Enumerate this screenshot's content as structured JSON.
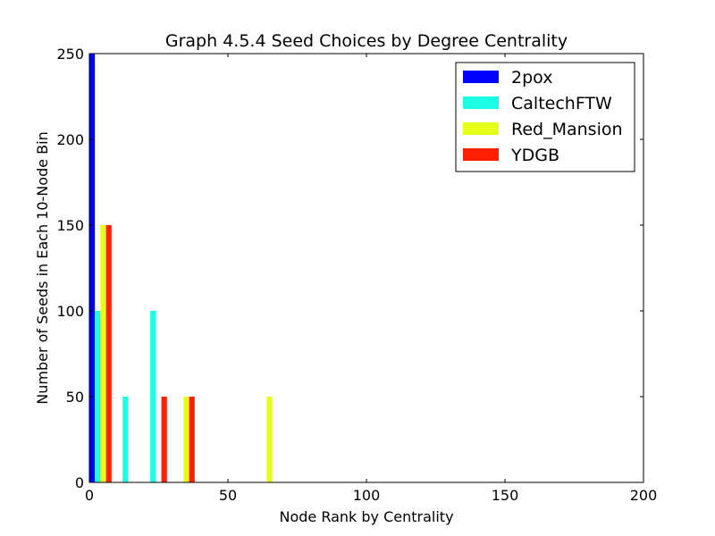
{
  "chart_data": {
    "type": "bar",
    "title": "Graph 4.5.4 Seed Choices by Degree Centrality",
    "xlabel": "Node Rank by Centrality",
    "ylabel": "Number of Seeds in Each 10-Node Bin",
    "xlim": [
      0,
      200
    ],
    "ylim": [
      0,
      250
    ],
    "x_ticks": [
      "0",
      "50",
      "100",
      "150",
      "200"
    ],
    "y_ticks": [
      "0",
      "50",
      "100",
      "150",
      "200",
      "250"
    ],
    "grid": false,
    "legend_position": "top-right",
    "bin_width": 10,
    "bin_starts": [
      0,
      10,
      20,
      30,
      60
    ],
    "series": [
      {
        "name": "2pox",
        "color": "#0000ff",
        "values": [
          250,
          0,
          0,
          0,
          0
        ]
      },
      {
        "name": "CaltechFTW",
        "color": "#1affe6",
        "values": [
          100,
          50,
          100,
          0,
          0
        ]
      },
      {
        "name": "Red_Mansion",
        "color": "#e6ff1a",
        "values": [
          150,
          0,
          0,
          50,
          50
        ]
      },
      {
        "name": "YDGB",
        "color": "#ff2000",
        "values": [
          150,
          0,
          50,
          50,
          0
        ]
      }
    ]
  }
}
